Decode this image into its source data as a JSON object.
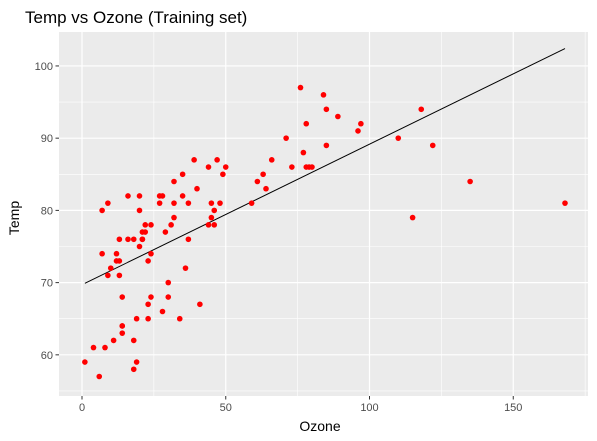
{
  "chart_data": {
    "type": "scatter",
    "title": "Temp vs Ozone (Training set)",
    "xlabel": "Ozone",
    "ylabel": "Temp",
    "xlim": [
      -8,
      176
    ],
    "ylim": [
      54.3,
      104.7
    ],
    "x_ticks": [
      0,
      50,
      100,
      150
    ],
    "y_ticks": [
      60,
      70,
      80,
      90,
      100
    ],
    "grid": true,
    "legend": "none",
    "colors": {
      "points": "#ff0000",
      "line": "#000000",
      "panel_background": "#ebebeb",
      "grid": "#ffffff"
    },
    "series": [
      {
        "type": "scatter",
        "x": [
          1,
          4,
          6,
          7,
          7,
          8,
          9,
          9,
          10,
          11,
          12,
          12,
          13,
          13,
          13,
          14,
          14,
          14,
          14,
          16,
          16,
          18,
          18,
          18,
          19,
          19,
          20,
          20,
          20,
          21,
          21,
          21,
          22,
          22,
          23,
          23,
          23,
          24,
          24,
          24,
          27,
          27,
          28,
          28,
          29,
          30,
          30,
          31,
          32,
          32,
          32,
          34,
          35,
          35,
          36,
          37,
          37,
          39,
          40,
          41,
          44,
          44,
          45,
          45,
          46,
          46,
          47,
          48,
          49,
          50,
          59,
          61,
          63,
          64,
          66,
          71,
          73,
          76,
          77,
          78,
          78,
          79,
          80,
          84,
          85,
          85,
          89,
          96,
          97,
          110,
          115,
          118,
          122,
          135,
          168
        ],
        "y": [
          59,
          61,
          57,
          74,
          80,
          61,
          71,
          81,
          72,
          62,
          73,
          74,
          71,
          73,
          76,
          63,
          64,
          64,
          68,
          76,
          82,
          58,
          62,
          76,
          59,
          65,
          75,
          80,
          82,
          76,
          76,
          77,
          77,
          78,
          65,
          67,
          73,
          68,
          74,
          78,
          81,
          82,
          66,
          82,
          77,
          68,
          70,
          78,
          79,
          81,
          84,
          65,
          82,
          85,
          72,
          76,
          81,
          87,
          83,
          67,
          78,
          86,
          79,
          81,
          78,
          80,
          87,
          81,
          85,
          86,
          81,
          84,
          85,
          83,
          87,
          90,
          86,
          97,
          88,
          86,
          92,
          86,
          86,
          96,
          89,
          94,
          93,
          91,
          92,
          90,
          79,
          94,
          89,
          84,
          81
        ]
      },
      {
        "type": "line",
        "x": [
          1,
          168
        ],
        "y": [
          69.9,
          102.4
        ]
      }
    ]
  }
}
